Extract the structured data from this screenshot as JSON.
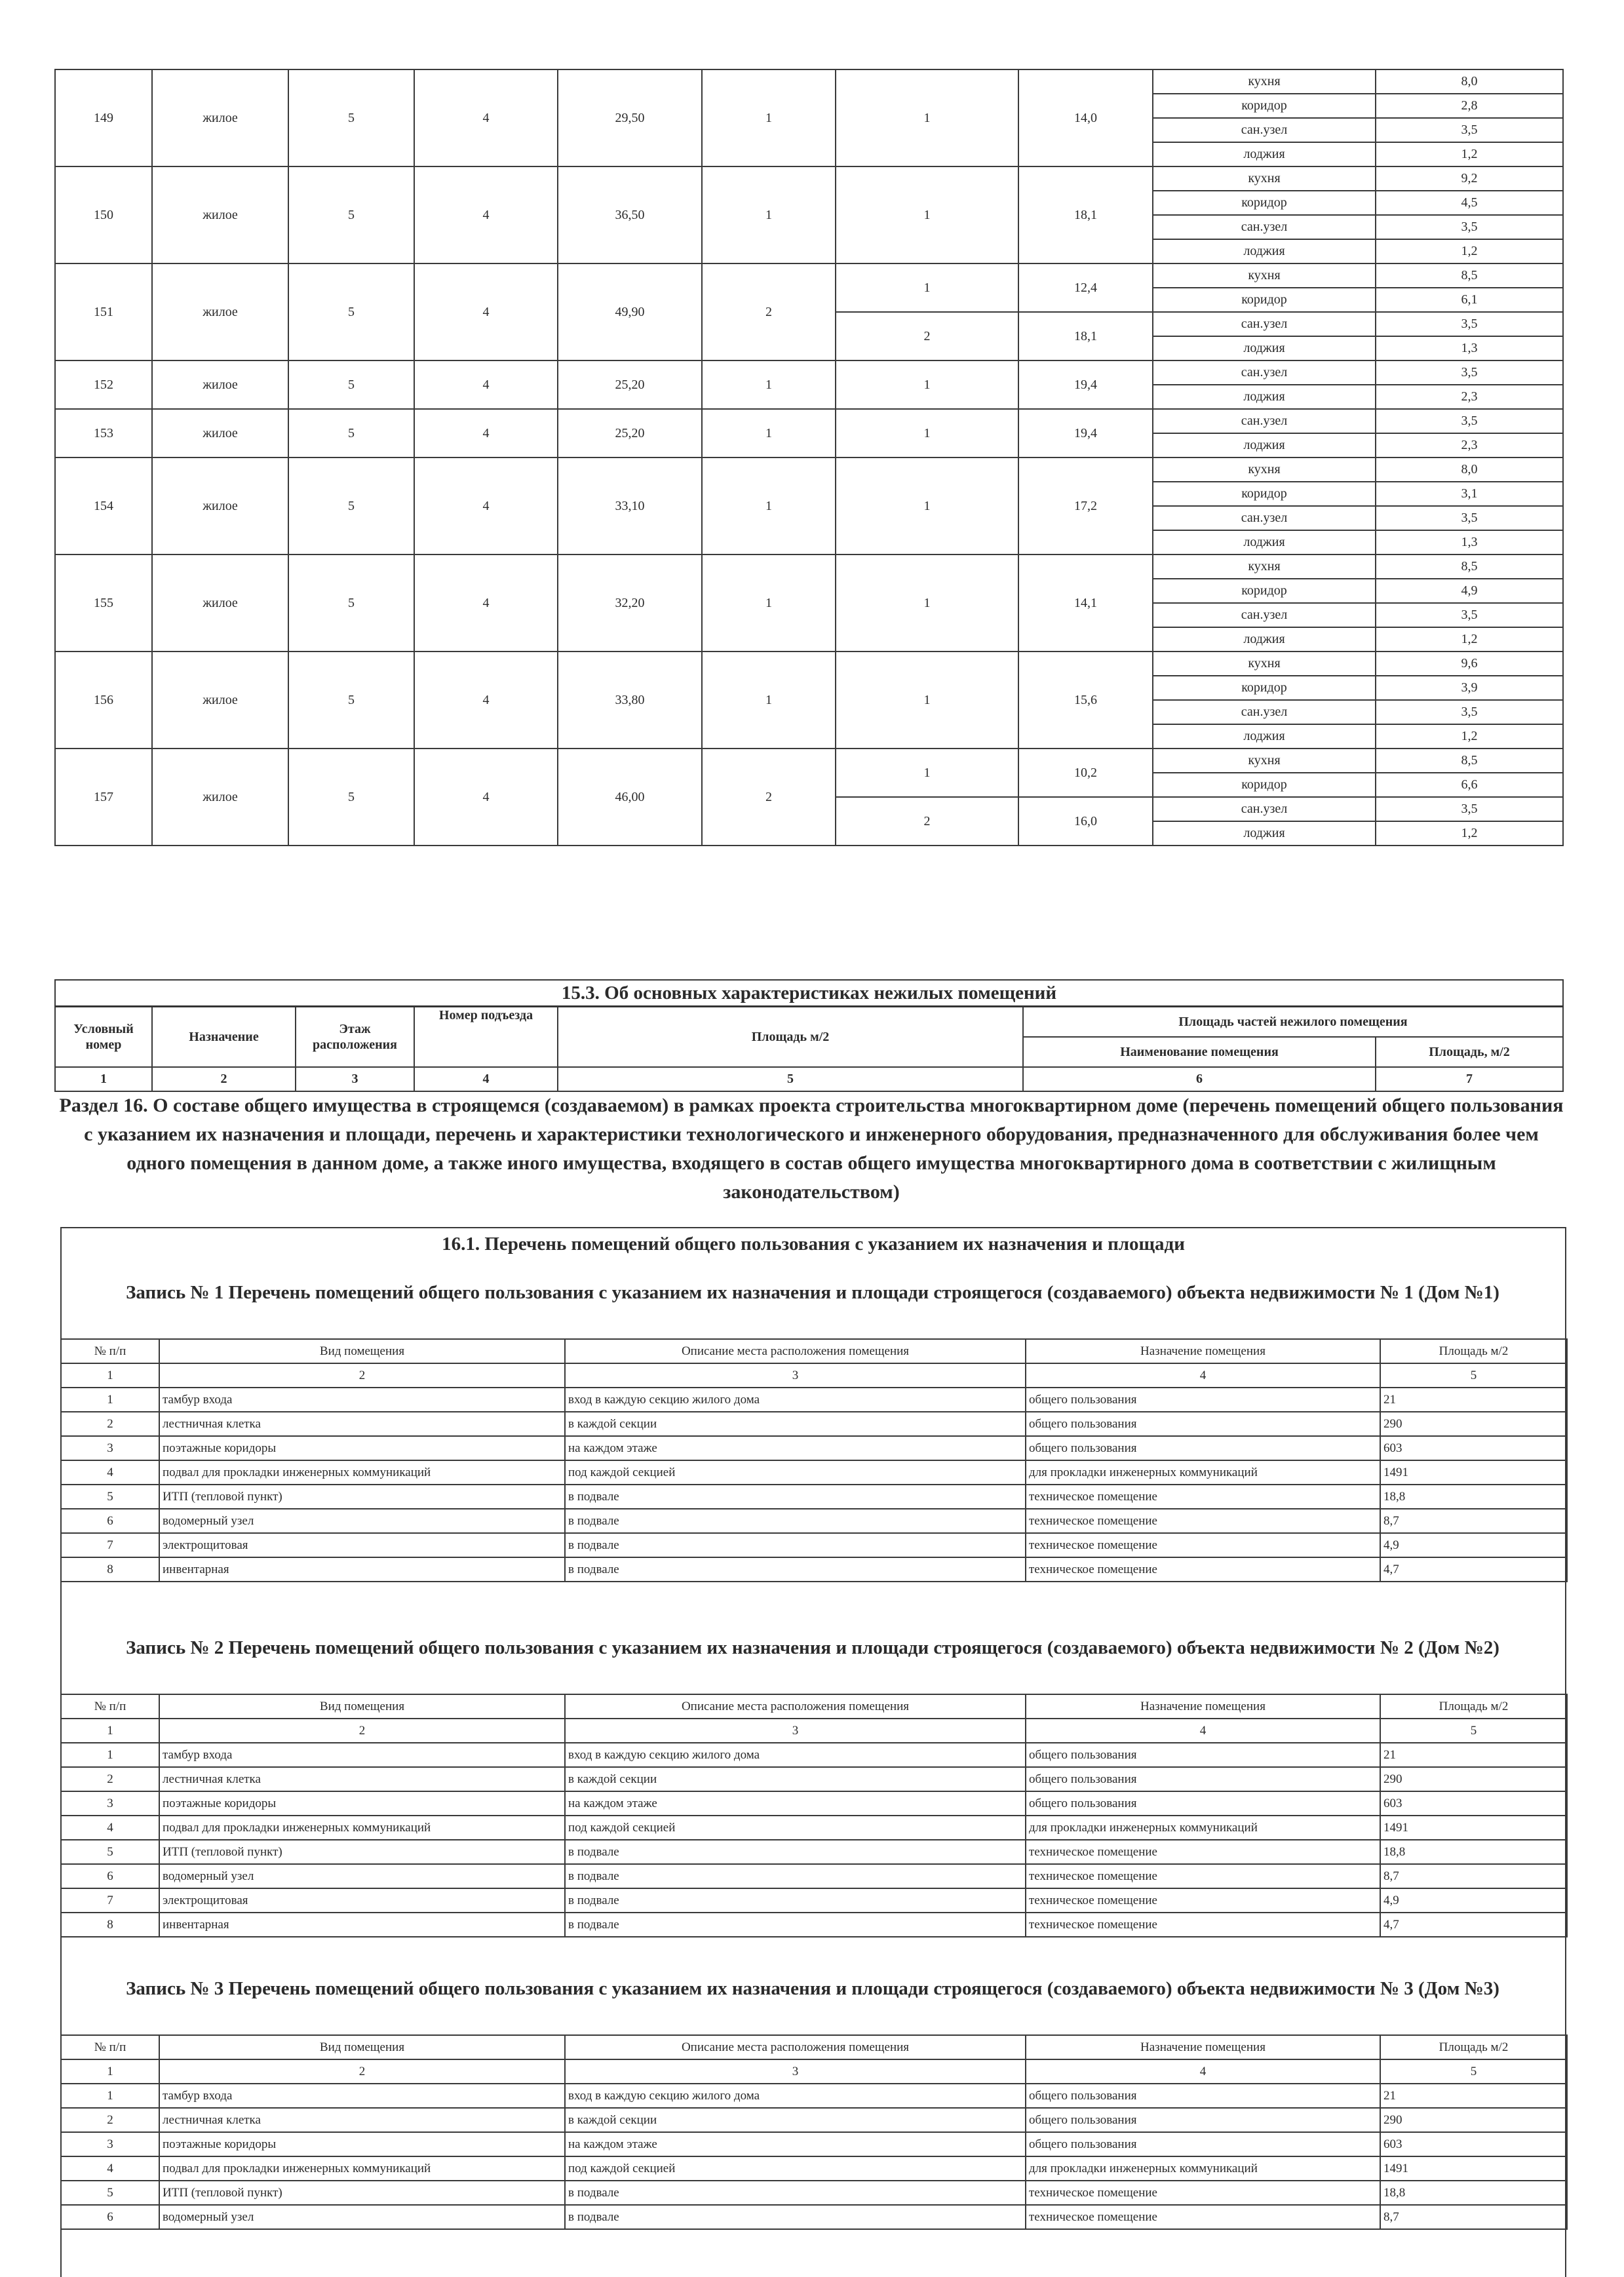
{
  "apartments": [
    {
      "number": "149",
      "type": "жилое",
      "floor": "5",
      "entrance": "4",
      "area": "29,50",
      "rooms_count": "1",
      "rooms": [
        {
          "n": "1",
          "area": "14,0"
        }
      ],
      "parts": [
        {
          "name": "кухня",
          "area": "8,0"
        },
        {
          "name": "коридор",
          "area": "2,8"
        },
        {
          "name": "сан.узел",
          "area": "3,5"
        },
        {
          "name": "лоджия",
          "area": "1,2"
        }
      ]
    },
    {
      "number": "150",
      "type": "жилое",
      "floor": "5",
      "entrance": "4",
      "area": "36,50",
      "rooms_count": "1",
      "rooms": [
        {
          "n": "1",
          "area": "18,1"
        }
      ],
      "parts": [
        {
          "name": "кухня",
          "area": "9,2"
        },
        {
          "name": "коридор",
          "area": "4,5"
        },
        {
          "name": "сан.узел",
          "area": "3,5"
        },
        {
          "name": "лоджия",
          "area": "1,2"
        }
      ]
    },
    {
      "number": "151",
      "type": "жилое",
      "floor": "5",
      "entrance": "4",
      "area": "49,90",
      "rooms_count": "2",
      "rooms": [
        {
          "n": "1",
          "area": "12,4"
        },
        {
          "n": "2",
          "area": "18,1"
        }
      ],
      "parts": [
        {
          "name": "кухня",
          "area": "8,5"
        },
        {
          "name": "коридор",
          "area": "6,1"
        },
        {
          "name": "сан.узел",
          "area": "3,5"
        },
        {
          "name": "лоджия",
          "area": "1,3"
        }
      ]
    },
    {
      "number": "152",
      "type": "жилое",
      "floor": "5",
      "entrance": "4",
      "area": "25,20",
      "rooms_count": "1",
      "rooms": [
        {
          "n": "1",
          "area": "19,4"
        }
      ],
      "parts": [
        {
          "name": "сан.узел",
          "area": "3,5"
        },
        {
          "name": "лоджия",
          "area": "2,3"
        }
      ]
    },
    {
      "number": "153",
      "type": "жилое",
      "floor": "5",
      "entrance": "4",
      "area": "25,20",
      "rooms_count": "1",
      "rooms": [
        {
          "n": "1",
          "area": "19,4"
        }
      ],
      "parts": [
        {
          "name": "сан.узел",
          "area": "3,5"
        },
        {
          "name": "лоджия",
          "area": "2,3"
        }
      ]
    },
    {
      "number": "154",
      "type": "жилое",
      "floor": "5",
      "entrance": "4",
      "area": "33,10",
      "rooms_count": "1",
      "rooms": [
        {
          "n": "1",
          "area": "17,2"
        }
      ],
      "parts": [
        {
          "name": "кухня",
          "area": "8,0"
        },
        {
          "name": "коридор",
          "area": "3,1"
        },
        {
          "name": "сан.узел",
          "area": "3,5"
        },
        {
          "name": "лоджия",
          "area": "1,3"
        }
      ]
    },
    {
      "number": "155",
      "type": "жилое",
      "floor": "5",
      "entrance": "4",
      "area": "32,20",
      "rooms_count": "1",
      "rooms": [
        {
          "n": "1",
          "area": "14,1"
        }
      ],
      "parts": [
        {
          "name": "кухня",
          "area": "8,5"
        },
        {
          "name": "коридор",
          "area": "4,9"
        },
        {
          "name": "сан.узел",
          "area": "3,5"
        },
        {
          "name": "лоджия",
          "area": "1,2"
        }
      ]
    },
    {
      "number": "156",
      "type": "жилое",
      "floor": "5",
      "entrance": "4",
      "area": "33,80",
      "rooms_count": "1",
      "rooms": [
        {
          "n": "1",
          "area": "15,6"
        }
      ],
      "parts": [
        {
          "name": "кухня",
          "area": "9,6"
        },
        {
          "name": "коридор",
          "area": "3,9"
        },
        {
          "name": "сан.узел",
          "area": "3,5"
        },
        {
          "name": "лоджия",
          "area": "1,2"
        }
      ]
    },
    {
      "number": "157",
      "type": "жилое",
      "floor": "5",
      "entrance": "4",
      "area": "46,00",
      "rooms_count": "2",
      "rooms": [
        {
          "n": "1",
          "area": "10,2"
        },
        {
          "n": "2",
          "area": "16,0"
        }
      ],
      "parts": [
        {
          "name": "кухня",
          "area": "8,5"
        },
        {
          "name": "коридор",
          "area": "6,6"
        },
        {
          "name": "сан.узел",
          "area": "3,5"
        },
        {
          "name": "лоджия",
          "area": "1,2"
        }
      ]
    }
  ],
  "nonresidential": {
    "title": "15.3. Об основных характеристиках нежилых помещений",
    "headers": {
      "number": "Условный номер",
      "purpose": "Назначение",
      "floor": "Этаж расположения",
      "entrance": "Номер подъезда",
      "area": "Площадь м/2",
      "parts": "Площадь частей нежилого помещения",
      "part_name": "Наименование помещения",
      "part_area": "Площадь, м/2"
    },
    "nums": [
      "1",
      "2",
      "3",
      "4",
      "5",
      "6",
      "7"
    ]
  },
  "section16": {
    "text": "Раздел 16. О составе общего имущества в строящемся (создаваемом) в рамках проекта строительства многоквартирном доме (перечень помещений общего пользования с указанием их назначения и площади, перечень и характеристики технологического и инженерного оборудования, предназначенного для обслуживания более чем одного помещения в данном доме, а также иного имущества, входящего в состав общего имущества многоквартирного дома в соответствии с жилищным законодательством)",
    "subtitle": "16.1. Перечень помещений общего пользования с указанием их назначения и площади"
  },
  "record_headers": [
    "№ п/п",
    "Вид помещения",
    "Описание места расположения помещения",
    "Назначение помещения",
    "Площадь м/2"
  ],
  "record_nums": [
    "1",
    "2",
    "3",
    "4",
    "5"
  ],
  "records": [
    {
      "title": "Запись № 1 Перечень помещений общего пользования с указанием их назначения и площади  строящегося (создаваемого) объекта недвижимости № 1 (Дом №1)",
      "rows": [
        [
          "1",
          "тамбур входа",
          "вход в каждую секцию жилого дома",
          "общего пользования",
          "21"
        ],
        [
          "2",
          "лестничная клетка",
          "в каждой секции",
          "общего пользования",
          "290"
        ],
        [
          "3",
          "поэтажные коридоры",
          "на каждом этаже",
          "общего пользования",
          "603"
        ],
        [
          "4",
          "подвал для прокладки инженерных коммуникаций",
          "под каждой секцией",
          "для прокладки инженерных коммуникаций",
          "1491"
        ],
        [
          "5",
          "ИТП (тепловой пункт)",
          "в подвале",
          "техническое помещение",
          "18,8"
        ],
        [
          "6",
          "водомерный узел",
          "в подвале",
          "техническое помещение",
          "8,7"
        ],
        [
          "7",
          "электрощитовая",
          "в подвале",
          "техническое помещение",
          "4,9"
        ],
        [
          "8",
          "инвентарная",
          "в подвале",
          "техническое помещение",
          "4,7"
        ]
      ]
    },
    {
      "title": "Запись № 2 Перечень помещений общего пользования с указанием их назначения и площади  строящегося (создаваемого) объекта недвижимости № 2 (Дом №2)",
      "rows": [
        [
          "1",
          "тамбур входа",
          "вход в каждую секцию жилого дома",
          "общего пользования",
          "21"
        ],
        [
          "2",
          "лестничная клетка",
          "в каждой секции",
          "общего пользования",
          "290"
        ],
        [
          "3",
          "поэтажные коридоры",
          "на каждом этаже",
          "общего пользования",
          "603"
        ],
        [
          "4",
          "подвал для прокладки инженерных коммуникаций",
          "под каждой секцией",
          "для прокладки инженерных коммуникаций",
          "1491"
        ],
        [
          "5",
          "ИТП (тепловой пункт)",
          "в подвале",
          "техническое помещение",
          "18,8"
        ],
        [
          "6",
          "водомерный узел",
          "в подвале",
          "техническое помещение",
          "8,7"
        ],
        [
          "7",
          "электрощитовая",
          "в подвале",
          "техническое помещение",
          "4,9"
        ],
        [
          "8",
          "инвентарная",
          "в подвале",
          "техническое помещение",
          "4,7"
        ]
      ]
    },
    {
      "title": "Запись № 3 Перечень помещений общего пользования с указанием их назначения и площади  строящегося (создаваемого) объекта недвижимости № 3 (Дом №3)",
      "rows": [
        [
          "1",
          "тамбур входа",
          "вход в каждую секцию жилого дома",
          "общего пользования",
          "21"
        ],
        [
          "2",
          "лестничная клетка",
          "в каждой секции",
          "общего пользования",
          "290"
        ],
        [
          "3",
          "поэтажные коридоры",
          "на каждом этаже",
          "общего пользования",
          "603"
        ],
        [
          "4",
          "подвал для прокладки инженерных коммуникаций",
          "под каждой секцией",
          "для прокладки инженерных коммуникаций",
          "1491"
        ],
        [
          "5",
          "ИТП (тепловой пункт)",
          "в подвале",
          "техническое помещение",
          "18,8"
        ],
        [
          "6",
          "водомерный узел",
          "в подвале",
          "техническое помещение",
          "8,7"
        ]
      ]
    }
  ]
}
